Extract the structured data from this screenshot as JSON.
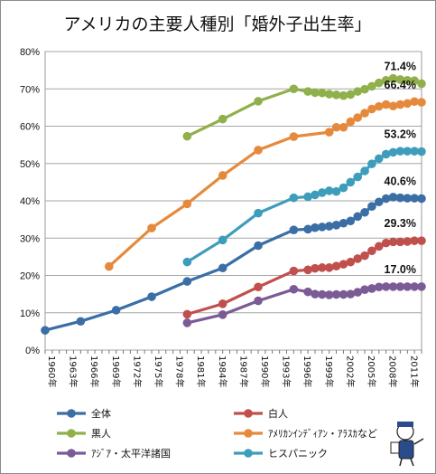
{
  "chart_data": {
    "type": "line",
    "title": "アメリカの主要人種別「婚外子出生率」",
    "ylim": [
      0,
      80
    ],
    "yticks": [
      "0%",
      "10%",
      "20%",
      "30%",
      "40%",
      "50%",
      "60%",
      "70%",
      "80%"
    ],
    "grid": true,
    "x_range": [
      1960,
      2013
    ],
    "x_ticks": [
      "1960年",
      "1963年",
      "1966年",
      "1969年",
      "1972年",
      "1975年",
      "1978年",
      "1981年",
      "1984年",
      "1987年",
      "1990年",
      "1993年",
      "1996年",
      "1999年",
      "2002年",
      "2005年",
      "2008年",
      "2011年"
    ],
    "legend_position": "bottom",
    "series": [
      {
        "name": "全体",
        "color": "#3a6ea5",
        "x": [
          1960,
          1965,
          1970,
          1975,
          1980,
          1985,
          1990,
          1995,
          1997,
          1998,
          1999,
          2000,
          2001,
          2002,
          2003,
          2004,
          2005,
          2006,
          2007,
          2008,
          2009,
          2010,
          2011,
          2012,
          2013
        ],
        "y": [
          5.3,
          7.7,
          10.7,
          14.3,
          18.4,
          22.0,
          28.0,
          32.2,
          32.4,
          32.8,
          33.0,
          33.2,
          33.5,
          34.0,
          34.6,
          35.8,
          36.9,
          38.5,
          39.7,
          40.6,
          41.0,
          40.8,
          40.7,
          40.7,
          40.6
        ]
      },
      {
        "name": "白人",
        "color": "#c0504d",
        "x": [
          1980,
          1985,
          1990,
          1995,
          1997,
          1998,
          1999,
          2000,
          2001,
          2002,
          2003,
          2004,
          2005,
          2006,
          2007,
          2008,
          2009,
          2010,
          2011,
          2012,
          2013
        ],
        "y": [
          9.6,
          12.4,
          16.9,
          21.2,
          21.5,
          21.9,
          22.1,
          22.1,
          22.5,
          23.0,
          23.6,
          24.5,
          25.3,
          26.6,
          27.8,
          28.7,
          29.0,
          29.0,
          29.1,
          29.3,
          29.3
        ]
      },
      {
        "name": "黒人",
        "color": "#8fb04a",
        "x": [
          1980,
          1985,
          1990,
          1995,
          1997,
          1998,
          1999,
          2000,
          2001,
          2002,
          2003,
          2004,
          2005,
          2006,
          2007,
          2008,
          2009,
          2010,
          2011,
          2012,
          2013
        ],
        "y": [
          57.3,
          61.9,
          66.7,
          70.0,
          69.3,
          69.0,
          68.9,
          68.6,
          68.4,
          68.2,
          68.5,
          69.3,
          69.9,
          70.7,
          71.6,
          72.3,
          72.8,
          72.5,
          72.3,
          72.2,
          71.4
        ]
      },
      {
        "name": "ｱﾒﾘｶﾝｲﾝﾃﾞｨｱﾝ・ｱﾗｽｶなど",
        "color": "#e58a3c",
        "x": [
          1969,
          1975,
          1980,
          1985,
          1990,
          1995,
          2000,
          2001,
          2002,
          2003,
          2004,
          2005,
          2006,
          2007,
          2008,
          2009,
          2010,
          2011,
          2012,
          2013
        ],
        "y": [
          22.4,
          32.7,
          39.2,
          46.8,
          53.6,
          57.2,
          58.4,
          59.7,
          59.7,
          61.2,
          62.3,
          63.5,
          64.6,
          65.3,
          65.8,
          65.4,
          65.8,
          66.1,
          66.6,
          66.4
        ]
      },
      {
        "name": "ｱｼﾞｱ・太平洋諸国",
        "color": "#7b5b96",
        "x": [
          1980,
          1985,
          1990,
          1995,
          1997,
          1998,
          1999,
          2000,
          2001,
          2002,
          2003,
          2004,
          2005,
          2006,
          2007,
          2008,
          2009,
          2010,
          2011,
          2012,
          2013
        ],
        "y": [
          7.3,
          9.5,
          13.2,
          16.3,
          15.6,
          15.0,
          14.9,
          14.8,
          14.9,
          14.9,
          15.0,
          15.5,
          16.2,
          16.5,
          16.9,
          17.0,
          17.0,
          17.0,
          17.0,
          17.0,
          17.0
        ]
      },
      {
        "name": "ヒスパニック",
        "color": "#3e9dbb",
        "x": [
          1980,
          1985,
          1990,
          1995,
          1997,
          1998,
          1999,
          2000,
          2001,
          2002,
          2003,
          2004,
          2005,
          2006,
          2007,
          2008,
          2009,
          2010,
          2011,
          2012,
          2013
        ],
        "y": [
          23.6,
          29.5,
          36.7,
          40.8,
          41.1,
          41.6,
          42.2,
          42.7,
          42.5,
          43.5,
          45.0,
          46.4,
          48.0,
          49.9,
          51.3,
          52.5,
          53.0,
          53.3,
          53.3,
          53.3,
          53.2
        ]
      }
    ],
    "end_labels": [
      {
        "text": "71.4%",
        "series": 2
      },
      {
        "text": "66.4%",
        "series": 3
      },
      {
        "text": "53.2%",
        "series": 5
      },
      {
        "text": "40.6%",
        "series": 0
      },
      {
        "text": "29.3%",
        "series": 1
      },
      {
        "text": "17.0%",
        "series": 4
      }
    ]
  }
}
